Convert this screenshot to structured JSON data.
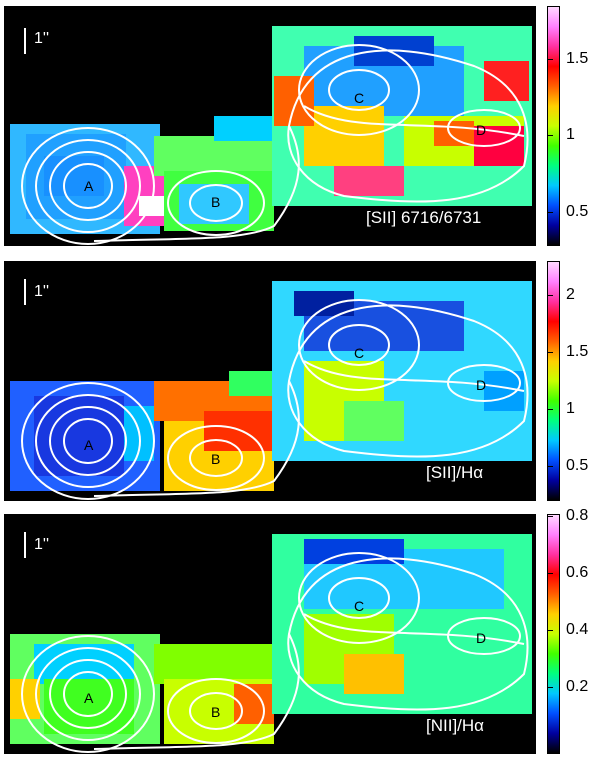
{
  "panels": [
    {
      "label": "[SII] 6716/6731",
      "scale": "1''",
      "ticks": [
        "1.5",
        "1",
        "0.5"
      ],
      "sources": [
        "A",
        "B",
        "C",
        "D"
      ]
    },
    {
      "label": "[SII]/Hα",
      "scale": "1''",
      "ticks": [
        "2",
        "1.5",
        "1",
        "0.5"
      ],
      "sources": [
        "A",
        "B",
        "C",
        "D"
      ]
    },
    {
      "label": "[NII]/Hα",
      "scale": "1''",
      "ticks": [
        "0.8",
        "0.6",
        "0.4",
        "0.2"
      ],
      "sources": [
        "A",
        "B",
        "C",
        "D"
      ]
    }
  ],
  "colorbar_gradient": [
    "#000000",
    "#0000a0",
    "#0050ff",
    "#00c8ff",
    "#00ff80",
    "#40ff00",
    "#c8ff00",
    "#ffd000",
    "#ff6000",
    "#ff0000",
    "#ff30a0",
    "#ff80ff",
    "#ffd8ff"
  ]
}
